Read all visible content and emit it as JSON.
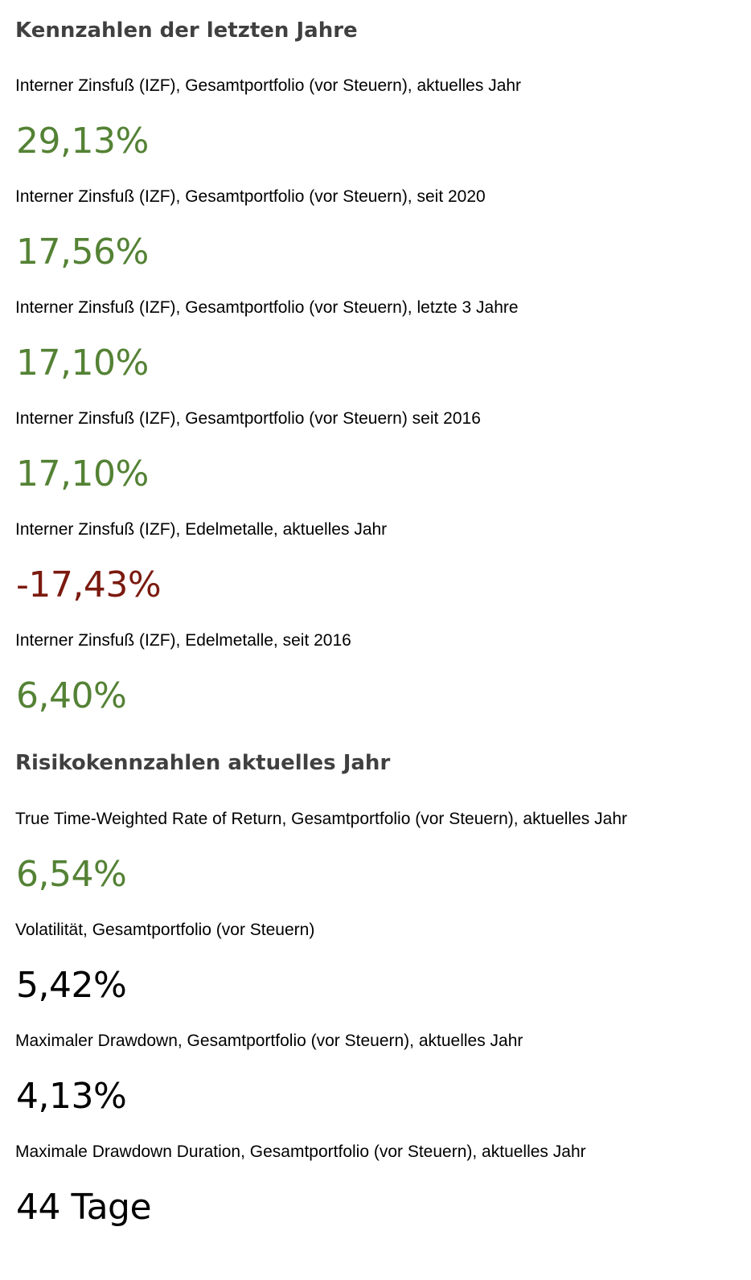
{
  "colors": {
    "heading": "#404040",
    "label": "#000000",
    "positive": "#548235",
    "negative": "#7b1a10",
    "neutral": "#000000"
  },
  "sections": [
    {
      "title": "Kennzahlen der letzten Jahre",
      "items": [
        {
          "label": "Interner Zinsfuß (IZF), Gesamtportfolio (vor Steuern), aktuelles Jahr",
          "value": "29,13%",
          "tone": "positive"
        },
        {
          "label": "Interner Zinsfuß (IZF), Gesamtportfolio (vor Steuern), seit 2020",
          "value": "17,56%",
          "tone": "positive"
        },
        {
          "label": "Interner Zinsfuß (IZF), Gesamtportfolio (vor Steuern), letzte 3 Jahre",
          "value": "17,10%",
          "tone": "positive"
        },
        {
          "label": "Interner Zinsfuß (IZF), Gesamtportfolio (vor Steuern) seit 2016",
          "value": "17,10%",
          "tone": "positive"
        },
        {
          "label": "Interner Zinsfuß (IZF), Edelmetalle, aktuelles Jahr",
          "value": "-17,43%",
          "tone": "negative"
        },
        {
          "label": "Interner Zinsfuß (IZF), Edelmetalle, seit 2016",
          "value": "6,40%",
          "tone": "positive"
        }
      ]
    },
    {
      "title": "Risikokennzahlen aktuelles Jahr",
      "items": [
        {
          "label": "True Time-Weighted Rate of Return, Gesamtportfolio (vor Steuern), aktuelles Jahr",
          "value": "6,54%",
          "tone": "positive"
        },
        {
          "label": "Volatilität, Gesamtportfolio (vor Steuern)",
          "value": "5,42%",
          "tone": "neutral"
        },
        {
          "label": "Maximaler Drawdown, Gesamtportfolio (vor Steuern), aktuelles Jahr",
          "value": "4,13%",
          "tone": "neutral"
        },
        {
          "label": "Maximale Drawdown Duration, Gesamtportfolio (vor Steuern), aktuelles Jahr",
          "value": "44 Tage",
          "tone": "neutral"
        }
      ]
    }
  ]
}
